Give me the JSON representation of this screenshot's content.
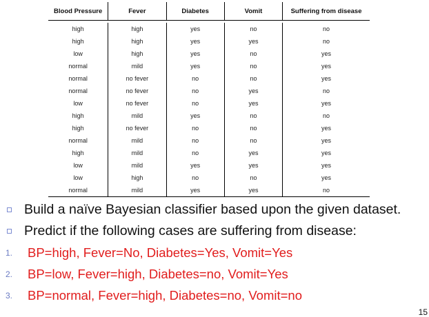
{
  "table": {
    "headers": [
      "Blood Pressure",
      "Fever",
      "Diabetes",
      "Vomit",
      "Suffering from disease"
    ],
    "rows": [
      [
        "high",
        "high",
        "yes",
        "no",
        "no"
      ],
      [
        "high",
        "high",
        "yes",
        "yes",
        "no"
      ],
      [
        "low",
        "high",
        "yes",
        "no",
        "yes"
      ],
      [
        "normal",
        "mild",
        "yes",
        "no",
        "yes"
      ],
      [
        "normal",
        "no fever",
        "no",
        "no",
        "yes"
      ],
      [
        "normal",
        "no fever",
        "no",
        "yes",
        "no"
      ],
      [
        "low",
        "no fever",
        "no",
        "yes",
        "yes"
      ],
      [
        "high",
        "mild",
        "yes",
        "no",
        "no"
      ],
      [
        "high",
        "no fever",
        "no",
        "no",
        "yes"
      ],
      [
        "normal",
        "mild",
        "no",
        "no",
        "yes"
      ],
      [
        "high",
        "mild",
        "no",
        "yes",
        "yes"
      ],
      [
        "low",
        "mild",
        "yes",
        "yes",
        "yes"
      ],
      [
        "low",
        "high",
        "no",
        "no",
        "yes"
      ],
      [
        "normal",
        "mild",
        "yes",
        "yes",
        "no"
      ]
    ]
  },
  "bullets": [
    "Build a naïve Bayesian classifier based upon the given dataset.",
    "Predict if the following cases are suffering from disease:"
  ],
  "cases": [
    {
      "num": "1.",
      "text": "BP=high,  Fever=No,  Diabetes=Yes,  Vomit=Yes"
    },
    {
      "num": "2.",
      "text": "BP=low,  Fever=high,  Diabetes=no,  Vomit=Yes"
    },
    {
      "num": "3.",
      "text": "BP=normal,  Fever=high,  Diabetes=no,  Vomit=no"
    }
  ],
  "page_number": "15",
  "colors": {
    "case_text": "#e11d1d",
    "bullet_icon": "#7b8bd1",
    "case_num": "#6a7bc3"
  }
}
